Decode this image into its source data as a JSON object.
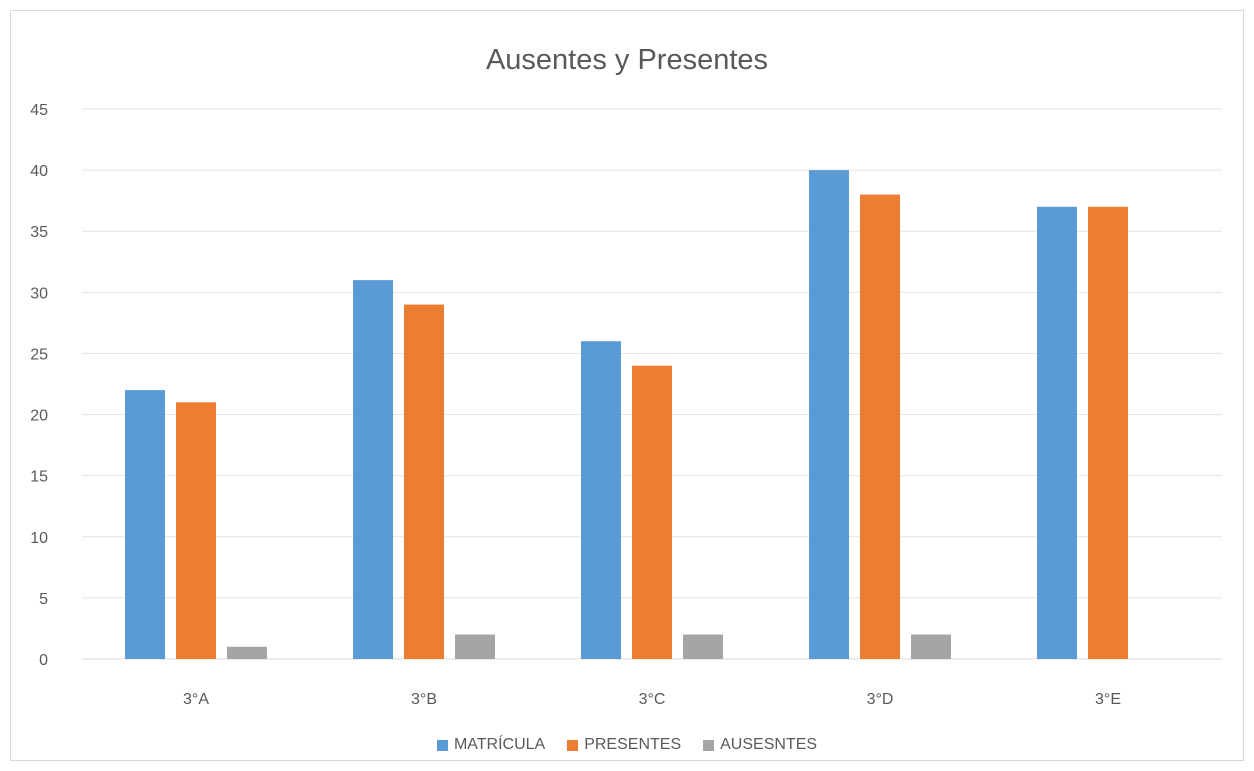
{
  "chart_data": {
    "type": "bar",
    "title": "Ausentes y Presentes",
    "xlabel": "",
    "ylabel": "",
    "categories": [
      "3°A",
      "3°B",
      "3°C",
      "3°D",
      "3°E"
    ],
    "series": [
      {
        "name": "MATRÍCULA",
        "color": "#5b9bd5",
        "values": [
          22,
          31,
          26,
          40,
          37
        ]
      },
      {
        "name": "PRESENTES",
        "color": "#ed7d31",
        "values": [
          21,
          29,
          24,
          38,
          37
        ]
      },
      {
        "name": "AUSESNTES",
        "color": "#a5a5a5",
        "values": [
          1,
          2,
          2,
          2,
          null
        ]
      }
    ],
    "ylim": [
      0,
      45
    ],
    "yticks": [
      0,
      5,
      10,
      15,
      20,
      25,
      30,
      35,
      40,
      45
    ],
    "grid": true,
    "legend_position": "bottom"
  }
}
